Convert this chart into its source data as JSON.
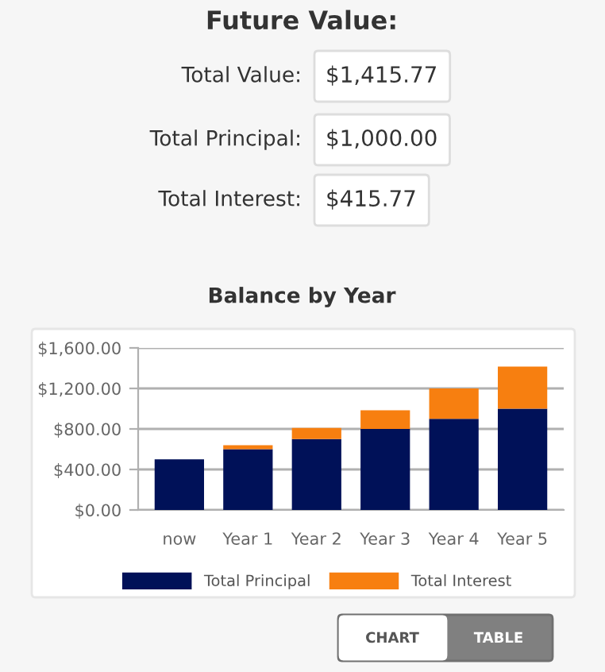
{
  "chart_data": [
    {
      "type": "other",
      "title": "Future Value:",
      "annotations": [
        "Total Value:",
        "$1,415.77",
        "Total Principal:",
        "$1,000.00",
        "Total Interest:",
        "$415.77"
      ]
    },
    {
      "type": "bar",
      "title": "Balance by Year",
      "stacked": true,
      "categories": [
        "now",
        "Year 1",
        "Year 2",
        "Year 3",
        "Year 4",
        "Year 5"
      ],
      "series": [
        {
          "name": "Total Principal",
          "color": "#001158",
          "values": [
            500,
            600,
            700,
            800,
            900,
            1000
          ]
        },
        {
          "name": "Total Interest",
          "color": "#f77f10",
          "values": [
            0,
            40,
            110,
            185,
            300,
            416
          ]
        }
      ],
      "ylim": [
        0,
        1600
      ],
      "yticks": [
        {
          "value": 0,
          "label": "$0.00"
        },
        {
          "value": 400,
          "label": "$400.00"
        },
        {
          "value": 800,
          "label": "$800.00"
        },
        {
          "value": 1200,
          "label": "$1,200.00"
        },
        {
          "value": 1600,
          "label": "$1,600.00"
        }
      ],
      "grid": "y",
      "legend": "bottom"
    },
    {
      "type": "other",
      "annotations": [
        "CHART",
        "TABLE"
      ]
    }
  ]
}
